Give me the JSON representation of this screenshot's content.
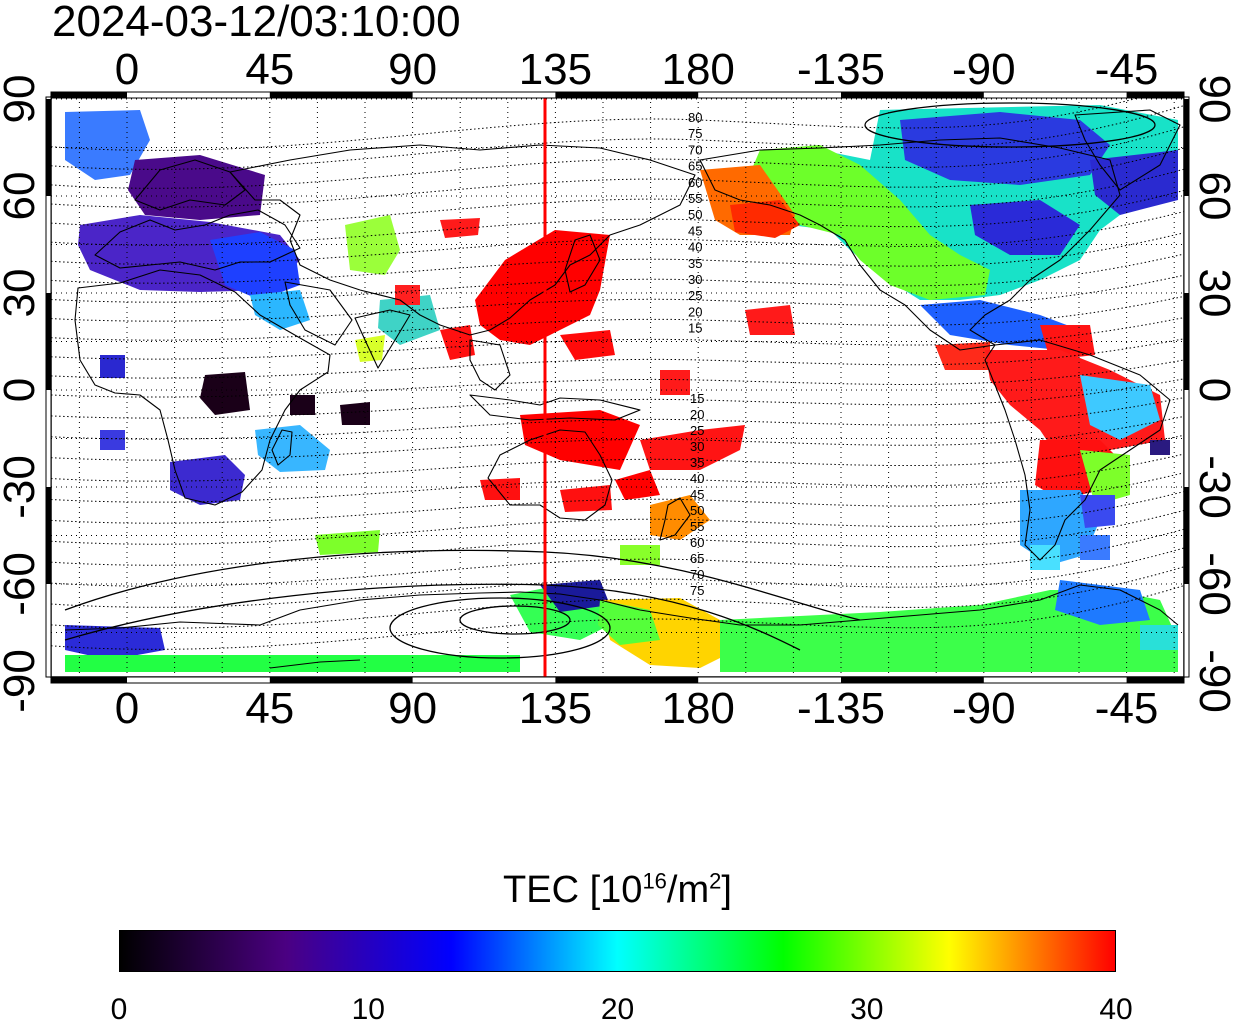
{
  "title": "2024-03-12/03:10:00",
  "map": {
    "projection": "equirectangular",
    "lon_center": 157.5,
    "top_lon_labels": [
      "0",
      "45",
      "90",
      "135",
      "180",
      "-135",
      "-90",
      "-45"
    ],
    "bottom_lon_labels": [
      "0",
      "45",
      "90",
      "135",
      "180",
      "-135",
      "-90",
      "-45"
    ],
    "left_lat_labels": [
      "90",
      "60",
      "30",
      "0",
      "-30",
      "-60",
      "-90"
    ],
    "right_lat_labels": [
      "90",
      "60",
      "30",
      "0",
      "-30",
      "-60",
      "-90"
    ],
    "grid": "dotted every 15 degrees",
    "marker_line": {
      "longitude": 134.5,
      "color": "#ff0000"
    },
    "contour_labels": {
      "north": [
        "80",
        "75",
        "70",
        "65",
        "60",
        "55",
        "50",
        "45",
        "40",
        "35",
        "30",
        "25",
        "20",
        "15"
      ],
      "south": [
        "15",
        "20",
        "25",
        "30",
        "35",
        "40",
        "45",
        "50",
        "55",
        "60",
        "65",
        "70",
        "75"
      ]
    }
  },
  "colorbar": {
    "label_prefix": "TEC  [10",
    "label_exp1": "16",
    "label_mid": "/m",
    "label_exp2": "2",
    "label_suffix": "]",
    "min": 0,
    "max": 40,
    "tick_labels": [
      "0",
      "10",
      "20",
      "30",
      "40"
    ],
    "colors": [
      "#000000",
      "#4b0082",
      "#0000ff",
      "#00ffff",
      "#00ff00",
      "#ffff00",
      "#ff0000"
    ]
  }
}
